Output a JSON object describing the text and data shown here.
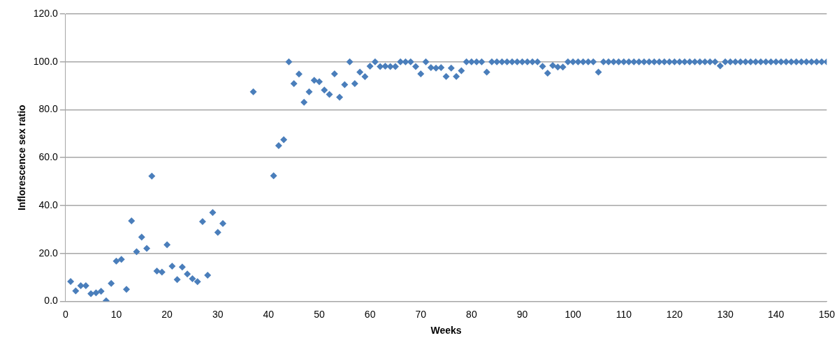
{
  "chart_data": {
    "type": "scatter",
    "xlabel": "Weeks",
    "ylabel": "Inflorescence sex ratio",
    "x": [
      1,
      2,
      3,
      4,
      5,
      6,
      7,
      8,
      9,
      10,
      11,
      12,
      13,
      14,
      15,
      16,
      17,
      18,
      19,
      20,
      21,
      22,
      23,
      24,
      25,
      26,
      27,
      28,
      29,
      30,
      31,
      37,
      41,
      42,
      43,
      44,
      45,
      46,
      47,
      48,
      49,
      50,
      51,
      52,
      53,
      54,
      55,
      56,
      57,
      58,
      59,
      60,
      61,
      62,
      63,
      64,
      65,
      66,
      67,
      68,
      69,
      70,
      71,
      72,
      73,
      74,
      75,
      76,
      77,
      78,
      79,
      80,
      81,
      82,
      83,
      84,
      85,
      86,
      87,
      88,
      89,
      90,
      91,
      92,
      93,
      94,
      95,
      96,
      97,
      98,
      99,
      100,
      101,
      102,
      103,
      104,
      105,
      106,
      107,
      108,
      109,
      110,
      111,
      112,
      113,
      114,
      115,
      116,
      117,
      118,
      119,
      120,
      121,
      122,
      123,
      124,
      125,
      126,
      127,
      128,
      129,
      130,
      131,
      132,
      133,
      134,
      135,
      136,
      137,
      138,
      139,
      140,
      141,
      142,
      143,
      144,
      145,
      146,
      147,
      148,
      149,
      150
    ],
    "series": [
      {
        "color": "#4a7ebb",
        "values": [
          8.3,
          4.3,
          6.5,
          6.5,
          3.2,
          3.5,
          4.2,
          0.2,
          7.5,
          16.8,
          17.5,
          5.0,
          33.6,
          20.7,
          26.8,
          22.1,
          52.3,
          12.6,
          12.2,
          23.6,
          14.7,
          9.1,
          14.3,
          11.4,
          9.4,
          8.2,
          33.3,
          10.9,
          37.1,
          28.8,
          32.5,
          87.5,
          52.4,
          65.0,
          67.5,
          100,
          90.9,
          94.9,
          83.1,
          87.5,
          92.3,
          91.7,
          88.2,
          86.4,
          95.0,
          85.2,
          90.5,
          100,
          90.9,
          95.7,
          93.8,
          98.2,
          100,
          98.0,
          98.2,
          98.0,
          98.0,
          100,
          100,
          100,
          98.0,
          95.0,
          100,
          97.6,
          97.4,
          97.6,
          93.9,
          97.4,
          93.9,
          96.3,
          100,
          100,
          100,
          100,
          95.7,
          100,
          100,
          100,
          100,
          100,
          100,
          100,
          100,
          100,
          100,
          98.1,
          95.3,
          98.5,
          97.8,
          97.8,
          100,
          100,
          100,
          100,
          100,
          100,
          95.7,
          100,
          100,
          100,
          100,
          100,
          100,
          100,
          100,
          100,
          100,
          100,
          100,
          100,
          100,
          100,
          100,
          100,
          100,
          100,
          100,
          100,
          100,
          100,
          98.3,
          100,
          100,
          100,
          100,
          100,
          100,
          100,
          100,
          100,
          100,
          100,
          100,
          100,
          100,
          100,
          100,
          100,
          100,
          100,
          100,
          100
        ]
      }
    ],
    "xlim": [
      0,
      150
    ],
    "xticks": [
      0,
      10,
      20,
      30,
      40,
      50,
      60,
      70,
      80,
      90,
      100,
      110,
      120,
      130,
      140,
      150
    ],
    "ylim": [
      0,
      120
    ],
    "yticks": [
      {
        "value": 0,
        "label": "0.0"
      },
      {
        "value": 20,
        "label": "20.0"
      },
      {
        "value": 40,
        "label": "40.0"
      },
      {
        "value": 60,
        "label": "60.0"
      },
      {
        "value": 80,
        "label": "80.0"
      },
      {
        "value": 100,
        "label": "100.0"
      },
      {
        "value": 120,
        "label": "120.0"
      }
    ],
    "grid": "y",
    "marker": "diamond",
    "legend": false
  }
}
